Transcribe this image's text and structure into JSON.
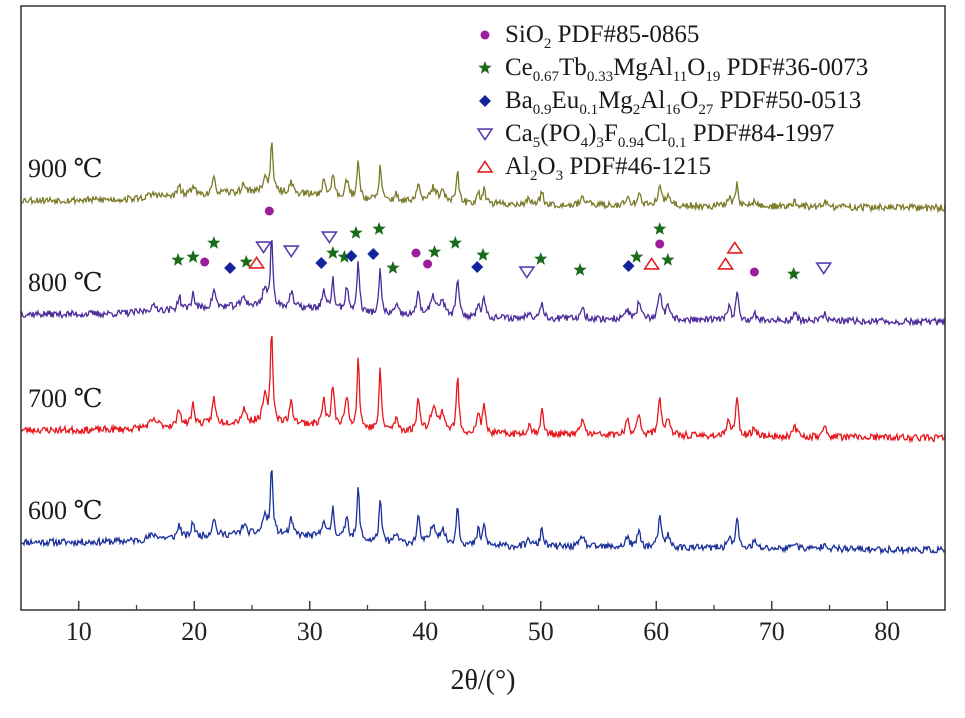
{
  "chart_data": {
    "type": "line",
    "xlabel": "2θ/(°)",
    "xlim": [
      5,
      85
    ],
    "x_ticks": [
      "10",
      "20",
      "30",
      "40",
      "50",
      "60",
      "70",
      "80"
    ],
    "y_ticks": [],
    "grid": false,
    "legend_position": "top-right",
    "legend": [
      {
        "marker": "circle",
        "color": "#9b1f9b",
        "parts": [
          [
            "SiO"
          ],
          [
            "2",
            "sub"
          ],
          [
            " PDF#85-0865"
          ]
        ]
      },
      {
        "marker": "star",
        "color": "#1a6b1a",
        "parts": [
          [
            "Ce"
          ],
          [
            "0.67",
            "sub"
          ],
          [
            "Tb"
          ],
          [
            "0.33",
            "sub"
          ],
          [
            "MgAl"
          ],
          [
            "11",
            "sub"
          ],
          [
            "O"
          ],
          [
            "19",
            "sub"
          ],
          [
            " PDF#36-0073"
          ]
        ]
      },
      {
        "marker": "diamond",
        "color": "#13239b",
        "parts": [
          [
            "Ba"
          ],
          [
            "0.9",
            "sub"
          ],
          [
            "Eu"
          ],
          [
            "0.1",
            "sub"
          ],
          [
            "Mg"
          ],
          [
            "2",
            "sub"
          ],
          [
            "Al"
          ],
          [
            "16",
            "sub"
          ],
          [
            "O"
          ],
          [
            "27",
            "sub"
          ],
          [
            " PDF#50-0513"
          ]
        ]
      },
      {
        "marker": "triangle-down",
        "color": "#5a3fb0",
        "parts": [
          [
            "Ca"
          ],
          [
            "5",
            "sub"
          ],
          [
            "(PO"
          ],
          [
            "4",
            "sub"
          ],
          [
            ")"
          ],
          [
            "3",
            "sub"
          ],
          [
            "F"
          ],
          [
            "0.94",
            "sub"
          ],
          [
            "Cl"
          ],
          [
            "0.1",
            "sub"
          ],
          [
            " PDF#84-1997"
          ]
        ]
      },
      {
        "marker": "triangle-up",
        "color": "#e02020",
        "parts": [
          [
            "Al"
          ],
          [
            "2",
            "sub"
          ],
          [
            "O"
          ],
          [
            "3",
            "sub"
          ],
          [
            " PDF#46-1215"
          ]
        ]
      }
    ],
    "series": [
      {
        "name": "600 ℃",
        "color": "#1a2f9b",
        "offset": 40,
        "amp": 0.85,
        "seed": 11
      },
      {
        "name": "700 ℃",
        "color": "#e8151b",
        "offset": 152,
        "amp": 1.15,
        "seed": 23
      },
      {
        "name": "800 ℃",
        "color": "#4b2a9a",
        "offset": 268,
        "amp": 0.85,
        "seed": 37
      },
      {
        "name": "900 ℃",
        "color": "#7a7a28",
        "offset": 382,
        "amp": 0.65,
        "seed": 53
      }
    ],
    "peaks": [
      {
        "x": 16.5,
        "h": 6,
        "w": 0.5
      },
      {
        "x": 18.7,
        "h": 16,
        "w": 0.16
      },
      {
        "x": 19.9,
        "h": 18,
        "w": 0.16
      },
      {
        "x": 21.7,
        "h": 22,
        "w": 0.16
      },
      {
        "x": 24.3,
        "h": 12,
        "w": 0.2
      },
      {
        "x": 26.1,
        "h": 22,
        "w": 0.2
      },
      {
        "x": 26.7,
        "h": 80,
        "w": 0.12
      },
      {
        "x": 28.4,
        "h": 18,
        "w": 0.16
      },
      {
        "x": 31.2,
        "h": 22,
        "w": 0.16
      },
      {
        "x": 32.0,
        "h": 35,
        "w": 0.14
      },
      {
        "x": 33.2,
        "h": 28,
        "w": 0.16
      },
      {
        "x": 34.2,
        "h": 62,
        "w": 0.12
      },
      {
        "x": 36.1,
        "h": 52,
        "w": 0.12
      },
      {
        "x": 37.5,
        "h": 10,
        "w": 0.2
      },
      {
        "x": 39.4,
        "h": 32,
        "w": 0.14
      },
      {
        "x": 40.7,
        "h": 22,
        "w": 0.3
      },
      {
        "x": 41.5,
        "h": 16,
        "w": 0.25
      },
      {
        "x": 42.8,
        "h": 48,
        "w": 0.13
      },
      {
        "x": 44.6,
        "h": 18,
        "w": 0.14
      },
      {
        "x": 45.1,
        "h": 24,
        "w": 0.14
      },
      {
        "x": 49.0,
        "h": 8,
        "w": 0.2
      },
      {
        "x": 50.1,
        "h": 22,
        "w": 0.14
      },
      {
        "x": 53.6,
        "h": 14,
        "w": 0.18
      },
      {
        "x": 57.5,
        "h": 12,
        "w": 0.18
      },
      {
        "x": 58.5,
        "h": 20,
        "w": 0.16
      },
      {
        "x": 60.3,
        "h": 34,
        "w": 0.16
      },
      {
        "x": 61.0,
        "h": 14,
        "w": 0.18
      },
      {
        "x": 66.3,
        "h": 14,
        "w": 0.16
      },
      {
        "x": 67.0,
        "h": 36,
        "w": 0.13
      },
      {
        "x": 68.5,
        "h": 8,
        "w": 0.18
      },
      {
        "x": 72.0,
        "h": 8,
        "w": 0.2
      },
      {
        "x": 74.6,
        "h": 8,
        "w": 0.2
      }
    ],
    "markers": [
      {
        "type": "star",
        "x": 18.6,
        "y": 260
      },
      {
        "type": "star",
        "x": 19.9,
        "y": 257
      },
      {
        "type": "circle",
        "x": 20.9,
        "y": 262
      },
      {
        "type": "star",
        "x": 21.7,
        "y": 243
      },
      {
        "type": "diamond",
        "x": 23.1,
        "y": 268
      },
      {
        "type": "star",
        "x": 24.5,
        "y": 262
      },
      {
        "type": "triangle-up",
        "x": 25.4,
        "y": 263
      },
      {
        "type": "triangle-down",
        "x": 26.0,
        "y": 247
      },
      {
        "type": "circle",
        "x": 26.5,
        "y": 211
      },
      {
        "type": "triangle-down",
        "x": 28.4,
        "y": 251
      },
      {
        "type": "diamond",
        "x": 31.0,
        "y": 263
      },
      {
        "type": "triangle-down",
        "x": 31.7,
        "y": 237
      },
      {
        "type": "star",
        "x": 32.0,
        "y": 253
      },
      {
        "type": "star",
        "x": 33.0,
        "y": 257
      },
      {
        "type": "diamond",
        "x": 33.6,
        "y": 256
      },
      {
        "type": "star",
        "x": 34.0,
        "y": 233
      },
      {
        "type": "diamond",
        "x": 35.5,
        "y": 254
      },
      {
        "type": "star",
        "x": 36.0,
        "y": 229
      },
      {
        "type": "star",
        "x": 37.2,
        "y": 268
      },
      {
        "type": "circle",
        "x": 39.2,
        "y": 253
      },
      {
        "type": "circle",
        "x": 40.2,
        "y": 264
      },
      {
        "type": "star",
        "x": 40.8,
        "y": 252
      },
      {
        "type": "star",
        "x": 42.6,
        "y": 243
      },
      {
        "type": "diamond",
        "x": 44.5,
        "y": 267
      },
      {
        "type": "star",
        "x": 45.0,
        "y": 255
      },
      {
        "type": "triangle-down",
        "x": 48.8,
        "y": 272
      },
      {
        "type": "star",
        "x": 50.0,
        "y": 259
      },
      {
        "type": "star",
        "x": 53.4,
        "y": 270
      },
      {
        "type": "diamond",
        "x": 57.6,
        "y": 266
      },
      {
        "type": "star",
        "x": 58.3,
        "y": 257
      },
      {
        "type": "triangle-up",
        "x": 59.6,
        "y": 264
      },
      {
        "type": "circle",
        "x": 60.3,
        "y": 244
      },
      {
        "type": "star",
        "x": 60.3,
        "y": 229
      },
      {
        "type": "star",
        "x": 61.0,
        "y": 260
      },
      {
        "type": "triangle-up",
        "x": 66.0,
        "y": 264
      },
      {
        "type": "triangle-up",
        "x": 66.8,
        "y": 248
      },
      {
        "type": "circle",
        "x": 68.5,
        "y": 272
      },
      {
        "type": "star",
        "x": 71.9,
        "y": 274
      },
      {
        "type": "triangle-down",
        "x": 74.5,
        "y": 268
      }
    ]
  }
}
